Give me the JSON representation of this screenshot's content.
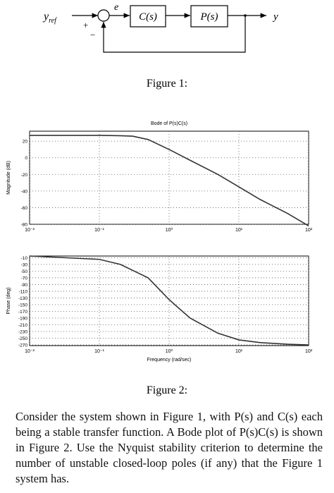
{
  "diagram": {
    "input": {
      "symbol": "y",
      "subscript": "ref"
    },
    "error": "e",
    "plus": "+",
    "minus": "−",
    "controller": "C(s)",
    "plant": "P(s)",
    "output": "y"
  },
  "figure1_caption": "Figure 1:",
  "chart_data": [
    {
      "type": "line",
      "title": "Bode of P(s)C(s)",
      "y_label": "Magnitude (dB)",
      "log_x": true,
      "grid": true,
      "color": "#333333",
      "x": [
        0.01,
        0.1,
        0.2,
        0.3,
        0.5,
        1,
        2,
        5,
        10,
        20,
        50,
        100
      ],
      "values": [
        27,
        27,
        26.5,
        26,
        22,
        10,
        -3,
        -20,
        -35,
        -50,
        -67,
        -82
      ],
      "xlim": [
        0.01,
        100
      ],
      "xticks": [
        {
          "value": 0.01,
          "label": "10⁻²"
        },
        {
          "value": 0.1,
          "label": "10⁻¹"
        },
        {
          "value": 1,
          "label": "10⁰"
        },
        {
          "value": 10,
          "label": "10¹"
        },
        {
          "value": 100,
          "label": "10²"
        }
      ],
      "ylim": [
        -80,
        32
      ],
      "yticks": [
        20,
        0,
        -20,
        -40,
        -60,
        -80
      ]
    },
    {
      "type": "line",
      "x_label": "Frequency (rad/sec)",
      "y_label": "Phase (deg)",
      "log_x": true,
      "grid": true,
      "color": "#333333",
      "x": [
        0.01,
        0.1,
        0.2,
        0.5,
        1,
        2,
        5,
        10,
        20,
        50,
        100
      ],
      "values": [
        -5,
        -15,
        -30,
        -70,
        -135,
        -190,
        -235,
        -255,
        -263,
        -268,
        -270
      ],
      "xlim": [
        0.01,
        100
      ],
      "xticks": [
        {
          "value": 0.01,
          "label": "10⁻²"
        },
        {
          "value": 0.1,
          "label": "10⁻¹"
        },
        {
          "value": 1,
          "label": "10⁰"
        },
        {
          "value": 10,
          "label": "10¹"
        },
        {
          "value": 100,
          "label": "10²"
        }
      ],
      "ylim": [
        -272,
        -5
      ],
      "yticks": [
        -10,
        -30,
        -50,
        -70,
        -90,
        -110,
        -130,
        -150,
        -170,
        -190,
        -210,
        -230,
        -250,
        -270
      ]
    }
  ],
  "figure2_caption": "Figure 2:",
  "paragraph": "Consider the system shown in Figure 1, with P(s) and C(s) each being a stable transfer function. A Bode plot of P(s)C(s) is shown in Figure 2. Use the Nyquist stability criterion to determine the number of unstable closed-loop poles (if any) that the Figure 1 system has."
}
